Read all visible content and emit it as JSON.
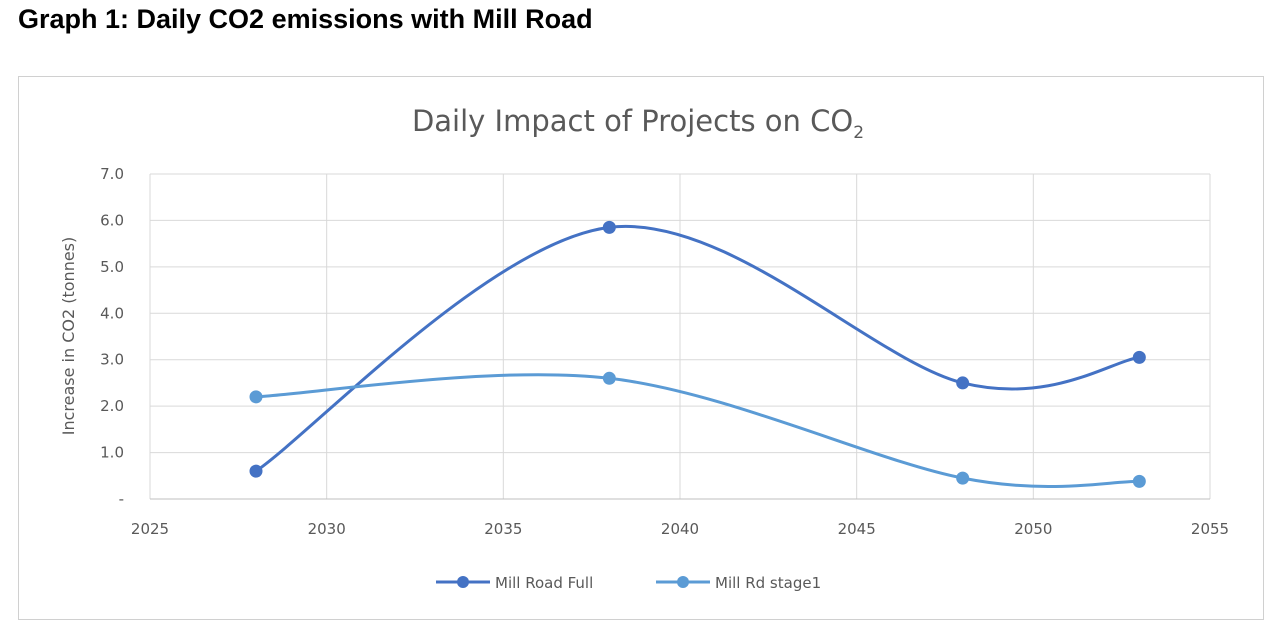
{
  "page": {
    "heading": "Graph 1: Daily CO2 emissions with Mill Road"
  },
  "chart_data": {
    "type": "line",
    "title_main": "Daily Impact of Projects on CO",
    "title_sub": "2",
    "ylabel": "Increase in CO2 (tonnes)",
    "xlabel": "",
    "xlim": [
      2025,
      2055
    ],
    "ylim": [
      0,
      7
    ],
    "x_ticks": [
      2025,
      2030,
      2035,
      2040,
      2045,
      2050,
      2055
    ],
    "x_tick_labels": [
      "2025",
      "2030",
      "2035",
      "2040",
      "2045",
      "2050",
      "2055"
    ],
    "y_ticks": [
      0,
      1,
      2,
      3,
      4,
      5,
      6,
      7
    ],
    "y_tick_labels": [
      "-",
      "1.0",
      "2.0",
      "3.0",
      "4.0",
      "5.0",
      "6.0",
      "7.0"
    ],
    "grid": true,
    "smooth": true,
    "legend_position": "bottom",
    "series": [
      {
        "name": "Mill Road Full",
        "color": "#4472c4",
        "x": [
          2028,
          2038,
          2048,
          2053
        ],
        "values": [
          0.6,
          5.85,
          2.5,
          3.05
        ]
      },
      {
        "name": "Mill Rd stage1",
        "color": "#5b9bd5",
        "x": [
          2028,
          2038,
          2048,
          2053
        ],
        "values": [
          2.2,
          2.6,
          0.45,
          0.38
        ]
      }
    ]
  }
}
